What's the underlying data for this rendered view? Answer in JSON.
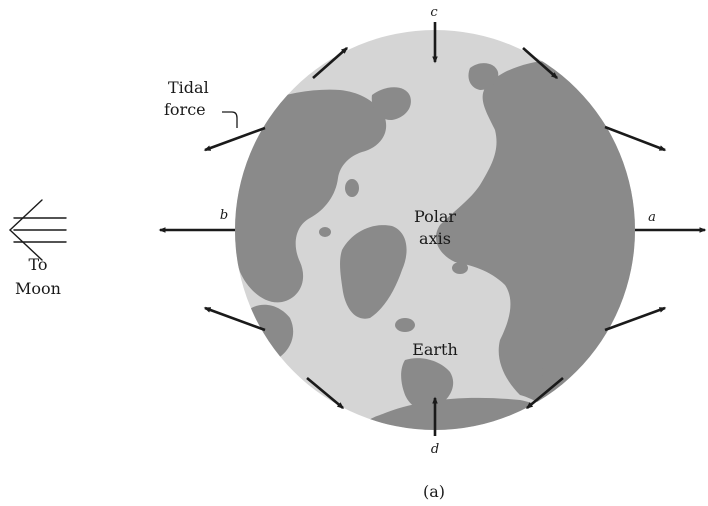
{
  "labels": {
    "tidal_force_line1": "Tidal",
    "tidal_force_line2": "force",
    "polar_axis_line1": "Polar",
    "polar_axis_line2": "axis",
    "earth": "Earth",
    "to_moon_line1": "To",
    "to_moon_line2": "Moon",
    "point_a": "a",
    "point_b": "b",
    "point_c": "c",
    "point_d": "d",
    "caption": "(a)"
  },
  "colors": {
    "ocean": "#d5d5d5",
    "land": "#8a8a8a",
    "arrow": "#1a1a1a"
  }
}
